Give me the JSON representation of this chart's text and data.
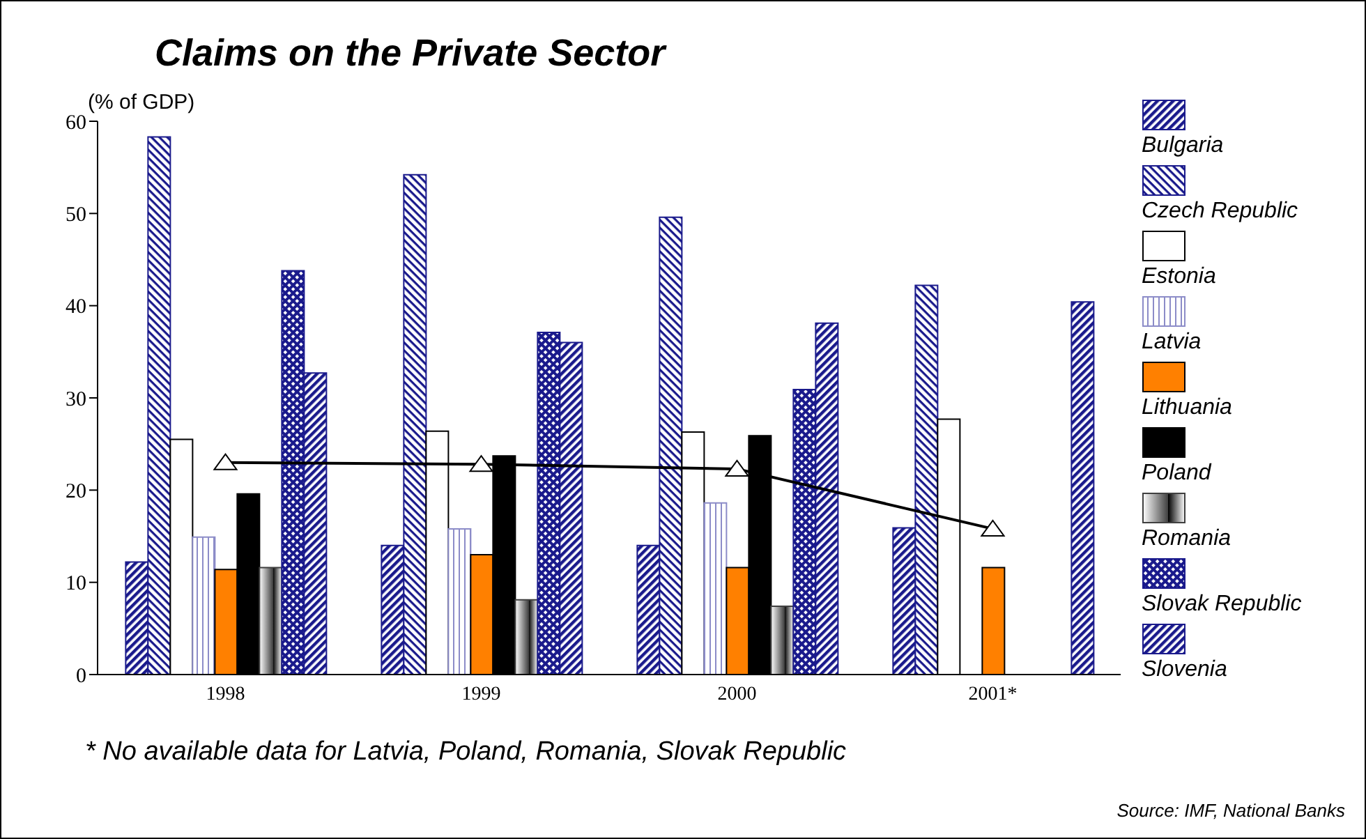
{
  "chart_data": {
    "type": "bar",
    "title": "Claims on the Private Sector",
    "ylabel": "(% of GDP)",
    "categories": [
      "1998",
      "1999",
      "2000",
      "2001*"
    ],
    "series": [
      {
        "name": "Bulgaria",
        "color": "#1a1a8c",
        "values": [
          12.2,
          14.0,
          14.0,
          15.9
        ]
      },
      {
        "name": "Czech Republic",
        "color": "#1a1a8c",
        "values": [
          58.3,
          54.2,
          49.6,
          42.2
        ]
      },
      {
        "name": "Estonia",
        "color": "#ffffff",
        "values": [
          25.5,
          26.4,
          26.3,
          27.7
        ]
      },
      {
        "name": "Latvia",
        "color": "#8c8cc8",
        "values": [
          14.9,
          15.8,
          18.6,
          null
        ]
      },
      {
        "name": "Lithuania",
        "color": "#ff8000",
        "values": [
          11.4,
          13.0,
          11.6,
          11.6
        ]
      },
      {
        "name": "Poland",
        "color": "#000000",
        "values": [
          19.6,
          23.7,
          25.9,
          null
        ]
      },
      {
        "name": "Romania",
        "color": "#404040",
        "values": [
          11.6,
          8.1,
          7.4,
          null
        ]
      },
      {
        "name": "Slovak Republic",
        "color": "#1a1a8c",
        "values": [
          43.8,
          37.1,
          30.9,
          0
        ]
      },
      {
        "name": "Slovenia",
        "color": "#1a1a8c",
        "values": [
          32.7,
          36.0,
          38.1,
          40.4
        ]
      },
      {
        "type": "line",
        "color": "#000000",
        "marker": "triangle",
        "values": [
          23.0,
          22.8,
          22.3,
          15.8
        ]
      }
    ],
    "ylim": [
      0,
      60
    ],
    "yticks": [
      0,
      10,
      20,
      30,
      40,
      50,
      60
    ],
    "grid": false,
    "legend": "right",
    "annotations": [
      "* No available data for Latvia, Poland, Romania, Slovak Republic",
      "Source: IMF, National Banks"
    ]
  }
}
